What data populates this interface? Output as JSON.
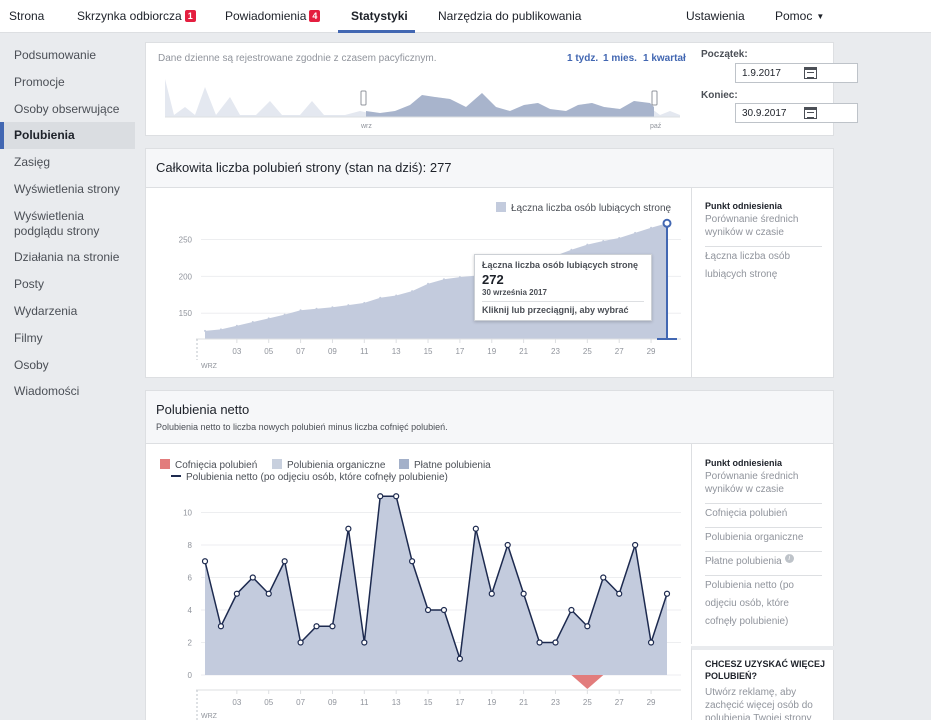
{
  "topnav": {
    "tabs": [
      {
        "label": "Strona"
      },
      {
        "label": "Skrzynka odbiorcza",
        "badge": "1"
      },
      {
        "label": "Powiadomienia",
        "badge": "4"
      },
      {
        "label": "Statystyki"
      },
      {
        "label": "Narzędzia do publikowania"
      }
    ],
    "settings": "Ustawienia",
    "help": "Pomoc"
  },
  "sidebar": {
    "items": [
      {
        "label": "Podsumowanie"
      },
      {
        "label": "Promocje"
      },
      {
        "label": "Osoby obserwujące"
      },
      {
        "label": "Polubienia"
      },
      {
        "label": "Zasięg"
      },
      {
        "label": "Wyświetlenia strony"
      },
      {
        "label": "Wyświetlenia podglądu strony"
      },
      {
        "label": "Działania na stronie"
      },
      {
        "label": "Posty"
      },
      {
        "label": "Wydarzenia"
      },
      {
        "label": "Filmy"
      },
      {
        "label": "Osoby"
      },
      {
        "label": "Wiadomości"
      }
    ]
  },
  "range": {
    "note": "Dane dzienne są rejestrowane zgodnie z czasem pacyficznym.",
    "links": [
      "1 tydz.",
      "1 mies.",
      "1 kwartał"
    ],
    "start_label": "Początek:",
    "start_value": "1.9.2017",
    "end_label": "Koniec:",
    "end_value": "30.9.2017",
    "mini_start": "wrz",
    "mini_end": "paź"
  },
  "total": {
    "title": "Całkowita liczba polubień strony (stan na dziś): 277",
    "legend": "Łączna liczba osób lubiących stronę",
    "tooltip": {
      "series": "Łączna liczba osób lubiących stronę",
      "value": "272",
      "date": "30 września 2017",
      "hint": "Kliknij lub przeciągnij, aby wybrać"
    },
    "panel": {
      "head": "Punkt odniesienia",
      "text": "Porównanie średnich wyników w czasie",
      "link": "Łączna liczba osób lubiących stronę"
    }
  },
  "net": {
    "title": "Polubienia netto",
    "subtitle": "Polubienia netto to liczba nowych polubień minus liczba cofnięć polubień.",
    "legend": {
      "unlikes": "Cofnięcia polubień",
      "organic": "Polubienia organiczne",
      "paid": "Płatne polubienia",
      "net": "Polubienia netto (po odjęciu osób, które cofnęły polubienie)"
    },
    "panel": {
      "head": "Punkt odniesienia",
      "text": "Porównanie średnich wyników w czasie",
      "links": [
        "Cofnięcia polubień",
        "Polubienia organiczne",
        "Płatne polubienia",
        "Polubienia netto (po odjęciu osób, które cofnęły polubienie)"
      ],
      "info_icon": "i"
    },
    "promo": {
      "head": "CHCESZ UZYSKAĆ WIĘCEJ POLUBIEŃ?",
      "text": "Utwórz reklamę, aby zachęcić więcej osób do polubienia Twojej strony"
    }
  },
  "colors": {
    "area": "#c3cbdd",
    "area_dark": "#a8b4cc",
    "line": "#1d2a4f",
    "accent": "#4267b2",
    "unlikes": "#e27c7c",
    "organic": "#c8d0de",
    "paid": "#a3b0c9"
  },
  "chart_data": [
    {
      "type": "area",
      "x": [
        1,
        2,
        3,
        4,
        5,
        6,
        7,
        8,
        9,
        10,
        11,
        12,
        13,
        14,
        15,
        16,
        17,
        18,
        19,
        20,
        21,
        22,
        23,
        24,
        25,
        26,
        27,
        28,
        29,
        30
      ],
      "values": [
        126,
        128,
        133,
        138,
        143,
        148,
        154,
        156,
        158,
        161,
        164,
        171,
        174,
        180,
        190,
        196,
        199,
        201,
        204,
        208,
        215,
        222,
        228,
        236,
        243,
        248,
        252,
        259,
        266,
        272
      ],
      "x_ticks": [
        "03",
        "05",
        "07",
        "09",
        "11",
        "13",
        "15",
        "17",
        "19",
        "21",
        "23",
        "25",
        "27",
        "29"
      ],
      "x_start_label": "WRZ",
      "y_ticks": [
        150,
        200,
        250
      ],
      "ylim": [
        115,
        290
      ],
      "legend": "Łączna liczba osób lubiących stronę"
    },
    {
      "type": "line",
      "x": [
        1,
        2,
        3,
        4,
        5,
        6,
        7,
        8,
        9,
        10,
        11,
        12,
        13,
        14,
        15,
        16,
        17,
        18,
        19,
        20,
        21,
        22,
        23,
        24,
        25,
        26,
        27,
        28,
        29,
        30
      ],
      "series": [
        {
          "name": "Polubienia netto (po odjęciu osób, które cofnęły polubienie)",
          "values": [
            7,
            3,
            5,
            6,
            5,
            7,
            2,
            3,
            3,
            9,
            2,
            11,
            11,
            7,
            4,
            4,
            1,
            9,
            5,
            8,
            5,
            2,
            2,
            4,
            3,
            6,
            5,
            8,
            2,
            5
          ]
        },
        {
          "name": "Cofnięcia polubień",
          "values": [
            0,
            0,
            0,
            0,
            0,
            0,
            0,
            0,
            0,
            0,
            0,
            0,
            0,
            0,
            0,
            0,
            0,
            0,
            0,
            0,
            0,
            0,
            0,
            0,
            1,
            0,
            0,
            0,
            0,
            0
          ]
        }
      ],
      "x_ticks": [
        "03",
        "05",
        "07",
        "09",
        "11",
        "13",
        "15",
        "17",
        "19",
        "21",
        "23",
        "25",
        "27",
        "29"
      ],
      "x_start_label": "WRZ",
      "y_ticks": [
        0,
        2,
        4,
        6,
        8,
        10
      ],
      "ylim": [
        0,
        12
      ]
    }
  ]
}
